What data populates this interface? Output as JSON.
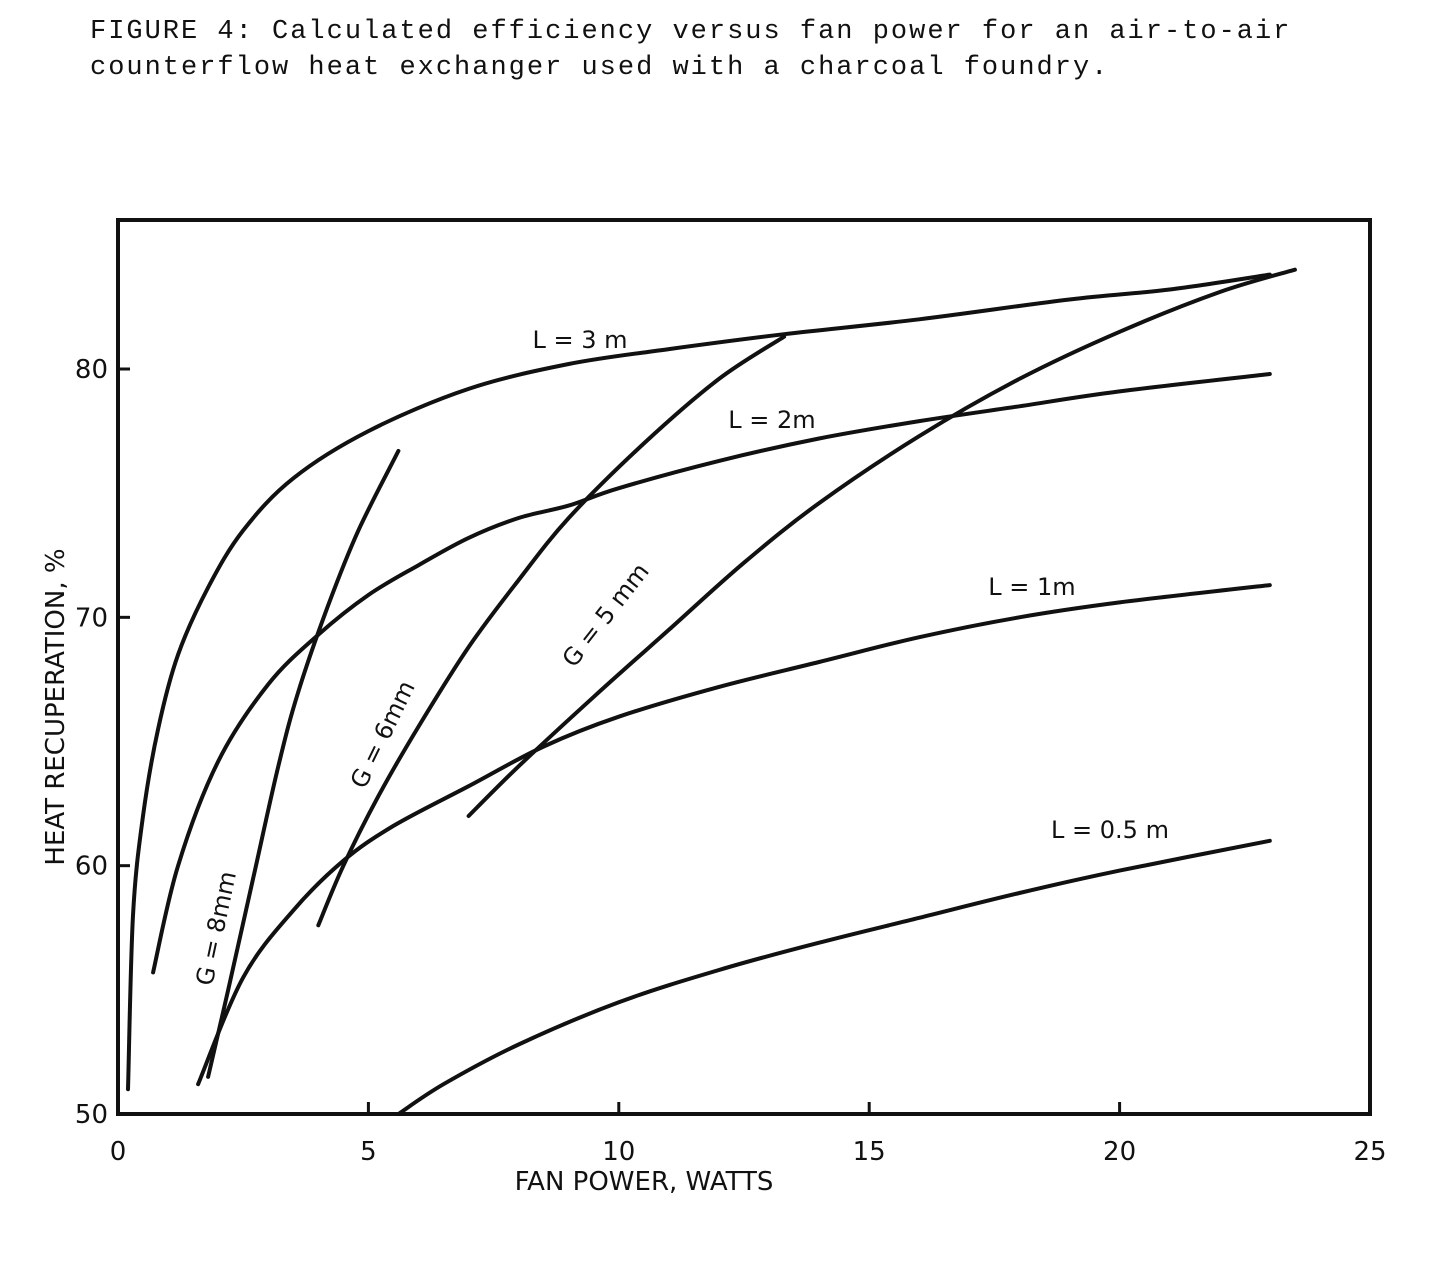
{
  "figure": {
    "caption": "FIGURE 4: Calculated efficiency versus fan power for an air-to-air counterflow heat exchanger used with a charcoal foundry."
  },
  "chart_data": {
    "type": "line",
    "xlabel": "FAN POWER, WATTS",
    "ylabel": "HEAT RECUPERATION, %",
    "xlim": [
      0,
      25
    ],
    "ylim": [
      50,
      86
    ],
    "x_ticks": [
      0,
      5,
      10,
      15,
      20,
      25
    ],
    "y_ticks": [
      50,
      60,
      70,
      80
    ],
    "grid": false,
    "legend": "none",
    "series": [
      {
        "name": "L = 3 m",
        "x": [
          0.2,
          0.3,
          0.5,
          0.8,
          1.2,
          1.8,
          2.5,
          3.5,
          5,
          7,
          9,
          11,
          13.3,
          16,
          19,
          21,
          23
        ],
        "y": [
          51,
          58,
          62,
          65.5,
          68.5,
          71.2,
          73.5,
          75.6,
          77.5,
          79.2,
          80.2,
          80.8,
          81.4,
          82,
          82.8,
          83.2,
          83.8
        ]
      },
      {
        "name": "L = 2m",
        "x": [
          0.7,
          1.2,
          2,
          3,
          4,
          5,
          6,
          7,
          8,
          9,
          10,
          12,
          14,
          16,
          18,
          20,
          23
        ],
        "y": [
          55.7,
          60,
          64.2,
          67.3,
          69.3,
          70.9,
          72.1,
          73.2,
          74,
          74.5,
          75.2,
          76.3,
          77.2,
          77.9,
          78.5,
          79.1,
          79.8
        ]
      },
      {
        "name": "L = 1m",
        "x": [
          1.6,
          2.5,
          3.5,
          4.5,
          5.5,
          7,
          8.5,
          10,
          12,
          14,
          16,
          18,
          20,
          23
        ],
        "y": [
          51.2,
          55.5,
          58.2,
          60.2,
          61.6,
          63.2,
          64.8,
          66,
          67.2,
          68.2,
          69.2,
          70,
          70.6,
          71.3
        ]
      },
      {
        "name": "L = 0.5 m",
        "x": [
          5.6,
          6.5,
          8,
          10,
          12,
          14,
          16,
          18,
          20,
          23
        ],
        "y": [
          50,
          51.2,
          52.8,
          54.5,
          55.8,
          56.9,
          57.9,
          58.9,
          59.8,
          61
        ]
      },
      {
        "name": "G = 8mm",
        "x": [
          1.8,
          2.2,
          2.7,
          3.2,
          3.6,
          4.2,
          4.8,
          5.6
        ],
        "y": [
          51.5,
          55,
          59.5,
          64,
          67,
          70.5,
          73.5,
          76.7
        ]
      },
      {
        "name": "G = 6mm",
        "x": [
          4,
          4.5,
          5.2,
          6,
          7,
          8,
          9,
          10.5,
          12,
          13.3
        ],
        "y": [
          57.6,
          60,
          62.8,
          65.6,
          68.8,
          71.5,
          74,
          77,
          79.6,
          81.3
        ]
      },
      {
        "name": "G = 5 mm",
        "x": [
          7,
          8,
          9.5,
          11,
          12.5,
          14,
          16,
          18,
          20,
          22,
          23.5
        ],
        "y": [
          62,
          64,
          66.8,
          69.5,
          72.2,
          74.6,
          77.3,
          79.6,
          81.5,
          83.1,
          84
        ]
      }
    ]
  }
}
